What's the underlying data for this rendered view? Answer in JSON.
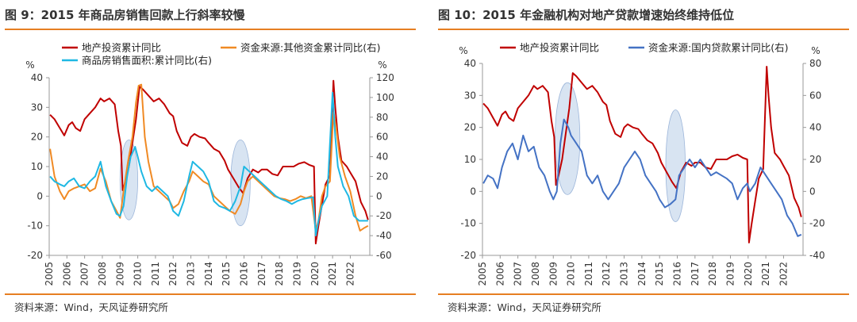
{
  "chart_data": [
    {
      "type": "line",
      "title": "图 9：2015 年商品房销售回款上行斜率较慢",
      "source": "资料来源：Wind，天风证券研究所",
      "ylabel_left": "%",
      "ylabel_right": "%",
      "ylim_left": [
        -20,
        40
      ],
      "yticks_left": [
        "40",
        "30",
        "20",
        "10",
        "0",
        "-10",
        "-20"
      ],
      "ylim_right": [
        -60,
        120
      ],
      "yticks_right": [
        "120",
        "100",
        "80",
        "60",
        "40",
        "20",
        "0",
        "-20",
        "-40",
        "-60"
      ],
      "xlim": [
        2005,
        2023.1
      ],
      "x_ticks": [
        "2005",
        "2006",
        "2007",
        "2008",
        "2009",
        "2010",
        "2011",
        "2012",
        "2013",
        "2014",
        "2015",
        "2016",
        "2017",
        "2018",
        "2019",
        "2020",
        "2021",
        "2022"
      ],
      "grid": false,
      "legend_position": "top-left",
      "colors": {
        "invest": "#c00000",
        "funding_other": "#f08a24",
        "sales_area": "#1fb8e3",
        "highlight": "#b8cde8"
      },
      "highlights": [
        {
          "center_x": 2009.5,
          "center_y": 5.5,
          "x_radius": 0.5,
          "y_radius": 13.5
        },
        {
          "center_x": 2015.8,
          "center_y": 4.5,
          "x_radius": 0.55,
          "y_radius": 14.5
        }
      ],
      "series": [
        {
          "name": "地产投资累计同比",
          "axis": "left",
          "color_key": "invest",
          "x": [
            2005.05,
            2005.3,
            2005.6,
            2005.85,
            2006.1,
            2006.3,
            2006.5,
            2006.75,
            2007.0,
            2007.3,
            2007.6,
            2007.9,
            2008.1,
            2008.4,
            2008.7,
            2008.9,
            2009.05,
            2009.15,
            2009.3,
            2009.5,
            2009.7,
            2009.9,
            2010.1,
            2010.3,
            2010.6,
            2010.9,
            2011.2,
            2011.5,
            2011.8,
            2012.0,
            2012.2,
            2012.5,
            2012.8,
            2013.0,
            2013.2,
            2013.5,
            2013.8,
            2014.0,
            2014.3,
            2014.6,
            2014.9,
            2015.1,
            2015.4,
            2015.7,
            2015.95,
            2016.2,
            2016.5,
            2016.8,
            2017.0,
            2017.3,
            2017.6,
            2017.9,
            2018.2,
            2018.5,
            2018.8,
            2019.1,
            2019.4,
            2019.7,
            2019.95,
            2020.05,
            2020.2,
            2020.4,
            2020.6,
            2020.85,
            2021.05,
            2021.15,
            2021.3,
            2021.5,
            2021.8,
            2022.0,
            2022.3,
            2022.6,
            2022.85,
            2023.0
          ],
          "y": [
            27.5,
            26,
            23,
            20.5,
            24,
            25,
            23,
            22,
            26,
            28,
            30,
            33,
            32,
            33,
            31,
            22,
            17,
            2,
            5,
            10,
            18,
            26,
            37,
            36,
            34,
            32,
            33,
            31,
            28,
            27,
            22,
            18,
            17,
            20,
            21,
            20,
            19.5,
            18,
            16,
            15,
            12,
            9,
            6,
            3,
            1,
            6,
            9,
            8,
            9,
            9,
            7.5,
            7,
            10,
            10,
            10,
            11,
            11.5,
            10.5,
            10,
            -16,
            -10,
            -3,
            4,
            7,
            39,
            30,
            20,
            12,
            10,
            8,
            5,
            -2,
            -5,
            -8
          ]
        },
        {
          "name": "资金来源:其他资金累计同比(右)",
          "axis": "right",
          "color_key": "funding_other",
          "x": [
            2005.05,
            2005.3,
            2005.6,
            2005.85,
            2006.1,
            2006.4,
            2006.7,
            2007.0,
            2007.3,
            2007.6,
            2007.9,
            2008.2,
            2008.5,
            2008.8,
            2009.0,
            2009.2,
            2009.45,
            2009.7,
            2009.9,
            2010.05,
            2010.2,
            2010.4,
            2010.6,
            2010.9,
            2011.2,
            2011.5,
            2011.8,
            2012.0,
            2012.3,
            2012.6,
            2012.9,
            2013.1,
            2013.4,
            2013.7,
            2014.0,
            2014.3,
            2014.6,
            2014.9,
            2015.2,
            2015.5,
            2015.8,
            2016.0,
            2016.2,
            2016.5,
            2016.8,
            2017.1,
            2017.4,
            2017.7,
            2018.0,
            2018.3,
            2018.6,
            2018.9,
            2019.2,
            2019.5,
            2019.8,
            2020.05,
            2020.2,
            2020.4,
            2020.6,
            2020.85,
            2021.05,
            2021.2,
            2021.4,
            2021.7,
            2022.0,
            2022.3,
            2022.55,
            2022.8,
            2023.0
          ],
          "y": [
            48,
            20,
            5,
            -3,
            5,
            8,
            10,
            12,
            5,
            8,
            28,
            15,
            -5,
            -15,
            -22,
            5,
            35,
            60,
            95,
            112,
            113,
            60,
            35,
            10,
            5,
            0,
            -5,
            -12,
            -8,
            5,
            15,
            25,
            20,
            15,
            12,
            0,
            -5,
            -10,
            -15,
            -18,
            -8,
            5,
            15,
            20,
            15,
            10,
            5,
            0,
            -2,
            -3,
            -5,
            -3,
            0,
            -2,
            0,
            -35,
            -25,
            0,
            10,
            15,
            85,
            70,
            40,
            20,
            5,
            -20,
            -35,
            -32,
            -30
          ]
        },
        {
          "name": "商品房销售面积:累计同比(右)",
          "axis": "right",
          "color_key": "sales_area",
          "x": [
            2005.05,
            2005.3,
            2005.6,
            2005.85,
            2006.1,
            2006.4,
            2006.7,
            2007.0,
            2007.3,
            2007.6,
            2007.9,
            2008.2,
            2008.5,
            2008.8,
            2009.0,
            2009.2,
            2009.4,
            2009.6,
            2009.85,
            2010.0,
            2010.2,
            2010.5,
            2010.8,
            2011.1,
            2011.4,
            2011.7,
            2012.0,
            2012.3,
            2012.6,
            2012.9,
            2013.1,
            2013.4,
            2013.7,
            2014.0,
            2014.3,
            2014.6,
            2014.9,
            2015.2,
            2015.5,
            2015.8,
            2016.0,
            2016.3,
            2016.6,
            2016.9,
            2017.2,
            2017.5,
            2017.8,
            2018.1,
            2018.4,
            2018.7,
            2019.0,
            2019.3,
            2019.6,
            2019.9,
            2020.05,
            2020.2,
            2020.4,
            2020.7,
            2021.0,
            2021.15,
            2021.3,
            2021.6,
            2021.9,
            2022.2,
            2022.5,
            2022.8,
            2023.0
          ],
          "y": [
            20,
            15,
            12,
            10,
            15,
            18,
            10,
            8,
            15,
            20,
            35,
            10,
            -5,
            -18,
            -20,
            -10,
            20,
            40,
            50,
            40,
            25,
            10,
            5,
            10,
            5,
            0,
            -15,
            -20,
            -5,
            20,
            35,
            30,
            25,
            15,
            -5,
            -10,
            -12,
            -15,
            -5,
            10,
            30,
            25,
            20,
            15,
            10,
            5,
            0,
            -3,
            -5,
            -8,
            -5,
            -3,
            -2,
            -1,
            -40,
            -25,
            -10,
            0,
            105,
            60,
            30,
            10,
            0,
            -20,
            -25,
            -25,
            -25
          ]
        }
      ]
    },
    {
      "type": "line",
      "title": "图 10：2015 年金融机构对地产贷款增速始终维持低位",
      "source": "资料来源：Wind，天风证券研究所",
      "ylabel_left": "%",
      "ylabel_right": "%",
      "ylim_left": [
        -20,
        40
      ],
      "yticks_left": [
        "40",
        "30",
        "20",
        "10",
        "0",
        "-10",
        "-20"
      ],
      "ylim_right": [
        -40,
        80
      ],
      "yticks_right": [
        "80",
        "60",
        "40",
        "20",
        "0",
        "-20",
        "-40"
      ],
      "xlim": [
        2005,
        2023.1
      ],
      "x_ticks": [
        "2005",
        "2006",
        "2007",
        "2008",
        "2009",
        "2010",
        "2011",
        "2012",
        "2013",
        "2014",
        "2015",
        "2016",
        "2017",
        "2018",
        "2019",
        "2020",
        "2021",
        "2022"
      ],
      "grid": false,
      "legend_position": "top-left",
      "colors": {
        "invest": "#c00000",
        "domestic_loan": "#4472c4",
        "highlight": "#b8cde8"
      },
      "highlights": [
        {
          "center_x": 2009.8,
          "center_y": 16.5,
          "x_radius": 0.7,
          "y_radius": 17.5
        },
        {
          "center_x": 2015.9,
          "center_y": 8,
          "x_radius": 0.55,
          "y_radius": 17.5
        }
      ],
      "series": [
        {
          "name": "地产投资累计同比",
          "axis": "left",
          "color_key": "invest",
          "x": [
            2005.05,
            2005.3,
            2005.6,
            2005.85,
            2006.1,
            2006.3,
            2006.5,
            2006.75,
            2007.0,
            2007.3,
            2007.6,
            2007.9,
            2008.1,
            2008.4,
            2008.7,
            2008.9,
            2009.05,
            2009.15,
            2009.3,
            2009.5,
            2009.7,
            2009.9,
            2010.1,
            2010.3,
            2010.6,
            2010.9,
            2011.2,
            2011.5,
            2011.8,
            2012.0,
            2012.2,
            2012.5,
            2012.8,
            2013.0,
            2013.2,
            2013.5,
            2013.8,
            2014.0,
            2014.3,
            2014.6,
            2014.9,
            2015.1,
            2015.4,
            2015.7,
            2015.95,
            2016.2,
            2016.5,
            2016.8,
            2017.0,
            2017.3,
            2017.6,
            2017.9,
            2018.2,
            2018.5,
            2018.8,
            2019.1,
            2019.4,
            2019.7,
            2019.95,
            2020.05,
            2020.2,
            2020.4,
            2020.6,
            2020.85,
            2021.05,
            2021.15,
            2021.3,
            2021.5,
            2021.8,
            2022.0,
            2022.3,
            2022.6,
            2022.85,
            2023.0
          ],
          "y": [
            27.5,
            26,
            23,
            20.5,
            24,
            25,
            23,
            22,
            26,
            28,
            30,
            33,
            32,
            33,
            31,
            22,
            17,
            2,
            5,
            10,
            18,
            26,
            37,
            36,
            34,
            32,
            33,
            31,
            28,
            27,
            22,
            18,
            17,
            20,
            21,
            20,
            19.5,
            18,
            16,
            15,
            12,
            9,
            6,
            3,
            1,
            6,
            9,
            8,
            9,
            9,
            7.5,
            7,
            10,
            10,
            10,
            11,
            11.5,
            10.5,
            10,
            -16,
            -10,
            -3,
            4,
            7,
            39,
            30,
            20,
            12,
            10,
            8,
            5,
            -2,
            -5,
            -8
          ]
        },
        {
          "name": "资金来源:国内贷款累计同比(右)",
          "axis": "right",
          "color_key": "domestic_loan",
          "x": [
            2005.05,
            2005.3,
            2005.6,
            2005.85,
            2006.1,
            2006.4,
            2006.7,
            2007.0,
            2007.3,
            2007.6,
            2007.9,
            2008.2,
            2008.5,
            2008.8,
            2009.0,
            2009.2,
            2009.4,
            2009.6,
            2009.85,
            2010.0,
            2010.3,
            2010.6,
            2010.9,
            2011.2,
            2011.5,
            2011.8,
            2012.1,
            2012.4,
            2012.7,
            2013.0,
            2013.3,
            2013.6,
            2013.9,
            2014.2,
            2014.5,
            2014.8,
            2015.0,
            2015.3,
            2015.6,
            2015.9,
            2016.1,
            2016.4,
            2016.7,
            2017.0,
            2017.3,
            2017.6,
            2017.9,
            2018.2,
            2018.5,
            2018.8,
            2019.1,
            2019.4,
            2019.7,
            2019.95,
            2020.1,
            2020.4,
            2020.7,
            2021.0,
            2021.3,
            2021.6,
            2021.9,
            2022.2,
            2022.5,
            2022.8,
            2023.0
          ],
          "y": [
            5,
            10,
            8,
            2,
            15,
            25,
            30,
            20,
            35,
            25,
            28,
            15,
            10,
            0,
            -5,
            0,
            30,
            45,
            40,
            35,
            30,
            25,
            10,
            5,
            10,
            0,
            -5,
            0,
            5,
            15,
            20,
            25,
            20,
            10,
            5,
            0,
            -5,
            -10,
            -8,
            -5,
            10,
            15,
            20,
            15,
            20,
            15,
            10,
            12,
            10,
            8,
            5,
            -5,
            2,
            5,
            0,
            5,
            15,
            10,
            5,
            0,
            -5,
            -15,
            -20,
            -28,
            -27
          ]
        }
      ]
    }
  ]
}
